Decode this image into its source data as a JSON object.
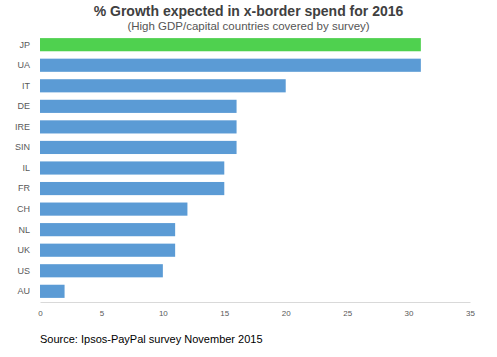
{
  "chart_data": {
    "type": "bar",
    "orientation": "horizontal",
    "title": "% Growth expected in x-border spend for 2016",
    "subtitle": "(High GDP/capital countries covered by survey)",
    "annotation": "Source: Ipsos-PayPal survey November 2015",
    "categories": [
      "JP",
      "UA",
      "IT",
      "DE",
      "IRE",
      "SIN",
      "IL",
      "FR",
      "CH",
      "NL",
      "UK",
      "US",
      "AU"
    ],
    "values": [
      31,
      31,
      20,
      16,
      16,
      16,
      15,
      15,
      12,
      11,
      11,
      10,
      2
    ],
    "colors": [
      "#4fd14f",
      "#5b9bd5",
      "#5b9bd5",
      "#5b9bd5",
      "#5b9bd5",
      "#5b9bd5",
      "#5b9bd5",
      "#5b9bd5",
      "#5b9bd5",
      "#5b9bd5",
      "#5b9bd5",
      "#5b9bd5",
      "#5b9bd5"
    ],
    "xlim": [
      0,
      35
    ],
    "xticks": [
      0,
      5,
      10,
      15,
      20,
      25,
      30,
      35
    ],
    "grid": false
  }
}
